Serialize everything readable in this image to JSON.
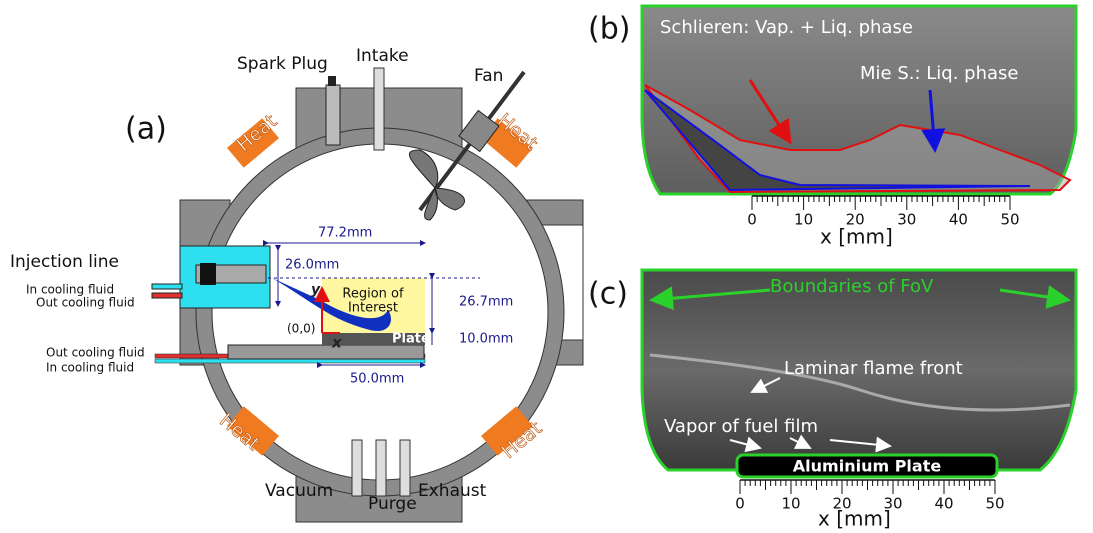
{
  "panel_a": {
    "label": "(a)",
    "spark_plug": "Spark Plug",
    "intake": "Intake",
    "fan": "Fan",
    "heat": [
      "Heat",
      "Heat",
      "Heat",
      "Heat"
    ],
    "injection_line": "Injection line",
    "cooling": [
      "In cooling fluid",
      "Out cooling fluid",
      "Out cooling fluid",
      "In cooling fluid"
    ],
    "dimensions": [
      "77.2mm",
      "26.0mm",
      "26.7mm",
      "10.0mm",
      "50.0mm"
    ],
    "y": "y",
    "x": "x",
    "origin": "(0,0)",
    "region": [
      "Region of",
      "Interest"
    ],
    "plate": "Plate",
    "vacuum": "Vacuum",
    "purge": "Purge",
    "exhaust": "Exhaust"
  },
  "panel_b": {
    "label": "(b)",
    "schlieren": "Schlieren: Vap. + Liq. phase",
    "mie": "Mie S.: Liq. phase",
    "axis": {
      "title": "x [mm]",
      "ticks": [
        0,
        10,
        20,
        30,
        40,
        50
      ]
    }
  },
  "panel_c": {
    "label": "(c)",
    "boundaries": "Boundaries of FoV",
    "flame": "Laminar flame front",
    "vapor": "Vapor of fuel film",
    "plate": "Aluminium Plate",
    "axis": {
      "title": "x [mm]",
      "ticks": [
        0,
        10,
        20,
        30,
        40,
        50
      ]
    }
  }
}
